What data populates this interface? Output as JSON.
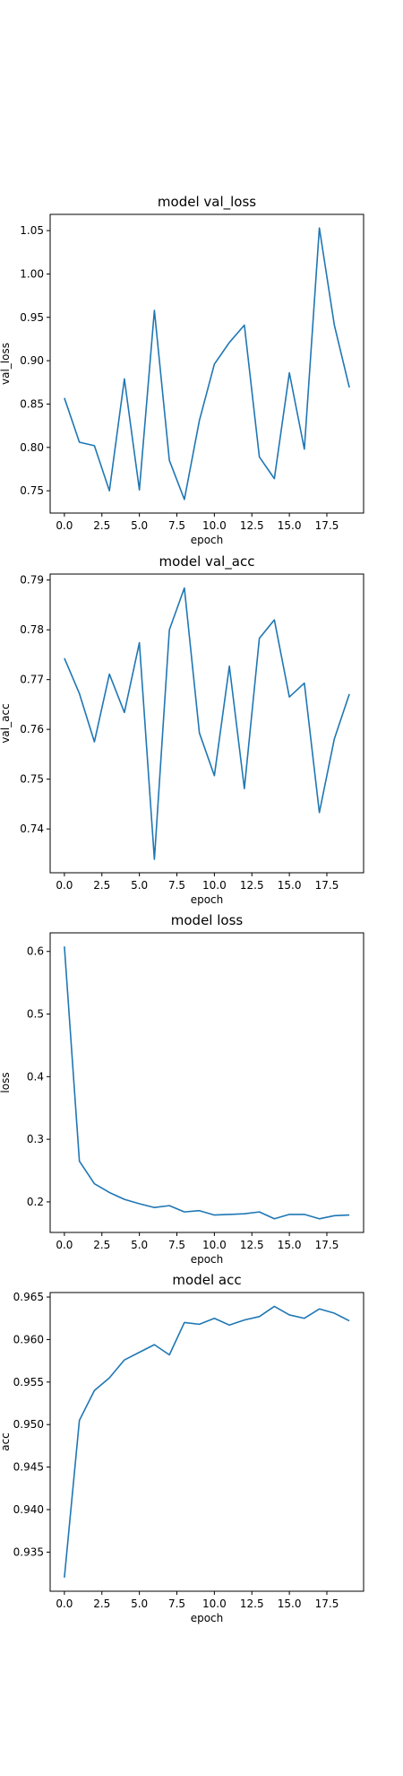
{
  "chart_data": [
    {
      "type": "line",
      "title": "model val_loss",
      "xlabel": "epoch",
      "ylabel": "val_loss",
      "x": [
        0,
        1,
        2,
        3,
        4,
        5,
        6,
        7,
        8,
        9,
        10,
        11,
        12,
        13,
        14,
        15,
        16,
        17,
        18,
        19
      ],
      "series": [
        {
          "values": [
            0.857,
            0.806,
            0.802,
            0.75,
            0.879,
            0.751,
            0.958,
            0.785,
            0.74,
            0.831,
            0.896,
            0.921,
            0.941,
            0.789,
            0.764,
            0.886,
            0.798,
            1.053,
            0.941,
            0.869
          ],
          "color": "#1f77b4"
        }
      ],
      "xlim": [
        -0.95,
        19.95
      ],
      "ylim": [
        0.7243,
        1.0687
      ],
      "xticks": [
        0.0,
        2.5,
        5.0,
        7.5,
        10.0,
        12.5,
        15.0,
        17.5
      ],
      "xtick_labels": [
        "0.0",
        "2.5",
        "5.0",
        "7.5",
        "10.0",
        "12.5",
        "15.0",
        "17.5"
      ],
      "yticks": [
        0.75,
        0.8,
        0.85,
        0.9,
        0.95,
        1.0,
        1.05
      ],
      "ytick_labels": [
        "0.75",
        "0.80",
        "0.85",
        "0.90",
        "0.95",
        "1.00",
        "1.05"
      ],
      "grid": false
    },
    {
      "type": "line",
      "title": "model val_acc",
      "xlabel": "epoch",
      "ylabel": "val_acc",
      "x": [
        0,
        1,
        2,
        3,
        4,
        5,
        6,
        7,
        8,
        9,
        10,
        11,
        12,
        13,
        14,
        15,
        16,
        17,
        18,
        19
      ],
      "series": [
        {
          "values": [
            0.7743,
            0.7672,
            0.7575,
            0.7711,
            0.7634,
            0.7774,
            0.7339,
            0.78,
            0.7884,
            0.7593,
            0.7507,
            0.7727,
            0.7481,
            0.7783,
            0.782,
            0.7665,
            0.7693,
            0.7433,
            0.7581,
            0.7671
          ],
          "color": "#1f77b4"
        }
      ],
      "xlim": [
        -0.95,
        19.95
      ],
      "ylim": [
        0.7312,
        0.7912
      ],
      "xticks": [
        0.0,
        2.5,
        5.0,
        7.5,
        10.0,
        12.5,
        15.0,
        17.5
      ],
      "xtick_labels": [
        "0.0",
        "2.5",
        "5.0",
        "7.5",
        "10.0",
        "12.5",
        "15.0",
        "17.5"
      ],
      "yticks": [
        0.74,
        0.75,
        0.76,
        0.77,
        0.78,
        0.79
      ],
      "ytick_labels": [
        "0.74",
        "0.75",
        "0.76",
        "0.77",
        "0.78",
        "0.79"
      ],
      "grid": false
    },
    {
      "type": "line",
      "title": "model loss",
      "xlabel": "epoch",
      "ylabel": "loss",
      "x": [
        0,
        1,
        2,
        3,
        4,
        5,
        6,
        7,
        8,
        9,
        10,
        11,
        12,
        13,
        14,
        15,
        16,
        17,
        18,
        19
      ],
      "series": [
        {
          "values": [
            0.608,
            0.265,
            0.229,
            0.215,
            0.204,
            0.197,
            0.191,
            0.194,
            0.184,
            0.186,
            0.179,
            0.18,
            0.181,
            0.184,
            0.173,
            0.18,
            0.18,
            0.173,
            0.178,
            0.179
          ],
          "color": "#1f77b4"
        }
      ],
      "xlim": [
        -0.95,
        19.95
      ],
      "ylim": [
        0.1512,
        0.6297
      ],
      "xticks": [
        0.0,
        2.5,
        5.0,
        7.5,
        10.0,
        12.5,
        15.0,
        17.5
      ],
      "xtick_labels": [
        "0.0",
        "2.5",
        "5.0",
        "7.5",
        "10.0",
        "12.5",
        "15.0",
        "17.5"
      ],
      "yticks": [
        0.2,
        0.3,
        0.4,
        0.5,
        0.6
      ],
      "ytick_labels": [
        "0.2",
        "0.3",
        "0.4",
        "0.5",
        "0.6"
      ],
      "grid": false
    },
    {
      "type": "line",
      "title": "model acc",
      "xlabel": "epoch",
      "ylabel": "acc",
      "x": [
        0,
        1,
        2,
        3,
        4,
        5,
        6,
        7,
        8,
        9,
        10,
        11,
        12,
        13,
        14,
        15,
        16,
        17,
        18,
        19
      ],
      "series": [
        {
          "values": [
            0.932,
            0.9505,
            0.954,
            0.9555,
            0.9576,
            0.9585,
            0.9594,
            0.9582,
            0.962,
            0.9618,
            0.9625,
            0.9617,
            0.9623,
            0.9627,
            0.9639,
            0.9629,
            0.9625,
            0.9636,
            0.9631,
            0.9622
          ],
          "color": "#1f77b4"
        }
      ],
      "xlim": [
        -0.95,
        19.95
      ],
      "ylim": [
        0.9304,
        0.96553
      ],
      "xticks": [
        0.0,
        2.5,
        5.0,
        7.5,
        10.0,
        12.5,
        15.0,
        17.5
      ],
      "xtick_labels": [
        "0.0",
        "2.5",
        "5.0",
        "7.5",
        "10.0",
        "12.5",
        "15.0",
        "17.5"
      ],
      "yticks": [
        0.935,
        0.94,
        0.945,
        0.95,
        0.955,
        0.96,
        0.965
      ],
      "ytick_labels": [
        "0.935",
        "0.940",
        "0.945",
        "0.950",
        "0.955",
        "0.960",
        "0.965"
      ],
      "grid": false
    }
  ]
}
